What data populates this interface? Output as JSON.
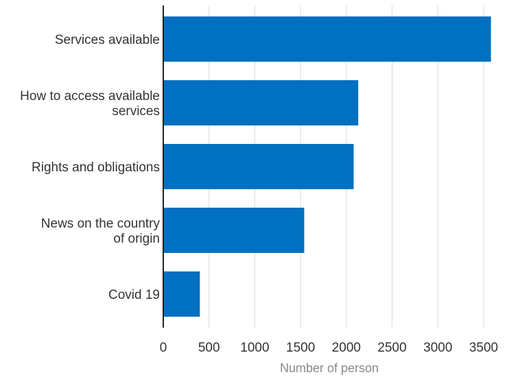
{
  "chart_data": {
    "type": "bar",
    "orientation": "horizontal",
    "categories": [
      [
        "Services available"
      ],
      [
        "How to access available",
        "services"
      ],
      [
        "Rights and obligations"
      ],
      [
        "News on the country",
        "of origin"
      ],
      [
        "Covid 19"
      ]
    ],
    "values": [
      3580,
      2130,
      2080,
      1540,
      400
    ],
    "xlabel": "Number of person",
    "ylabel": "",
    "title": "",
    "xlim": [
      0,
      3600
    ],
    "xticks": [
      0,
      500,
      1000,
      1500,
      2000,
      2500,
      3000,
      3500
    ],
    "grid": true,
    "colors": {
      "bar": "#0070c0",
      "grid": "#d9d9d9",
      "axis": "#222222"
    }
  }
}
